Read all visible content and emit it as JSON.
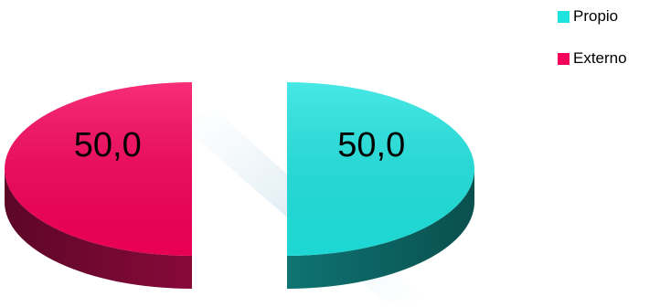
{
  "chart_data": {
    "type": "pie",
    "style": "3d-exploded",
    "labels": [
      "Propio",
      "Externo"
    ],
    "values": [
      50.0,
      50.0
    ],
    "data_labels": [
      "50,0",
      "50,0"
    ],
    "colors": [
      "#1fe3df",
      "#f5005a"
    ],
    "side_colors": [
      "#0f7a78",
      "#8e0a3c"
    ],
    "legend_position": "top-right"
  },
  "legend": {
    "items": [
      {
        "label": "Propio",
        "color": "#1fe3df"
      },
      {
        "label": "Externo",
        "color": "#f5005a"
      }
    ]
  }
}
